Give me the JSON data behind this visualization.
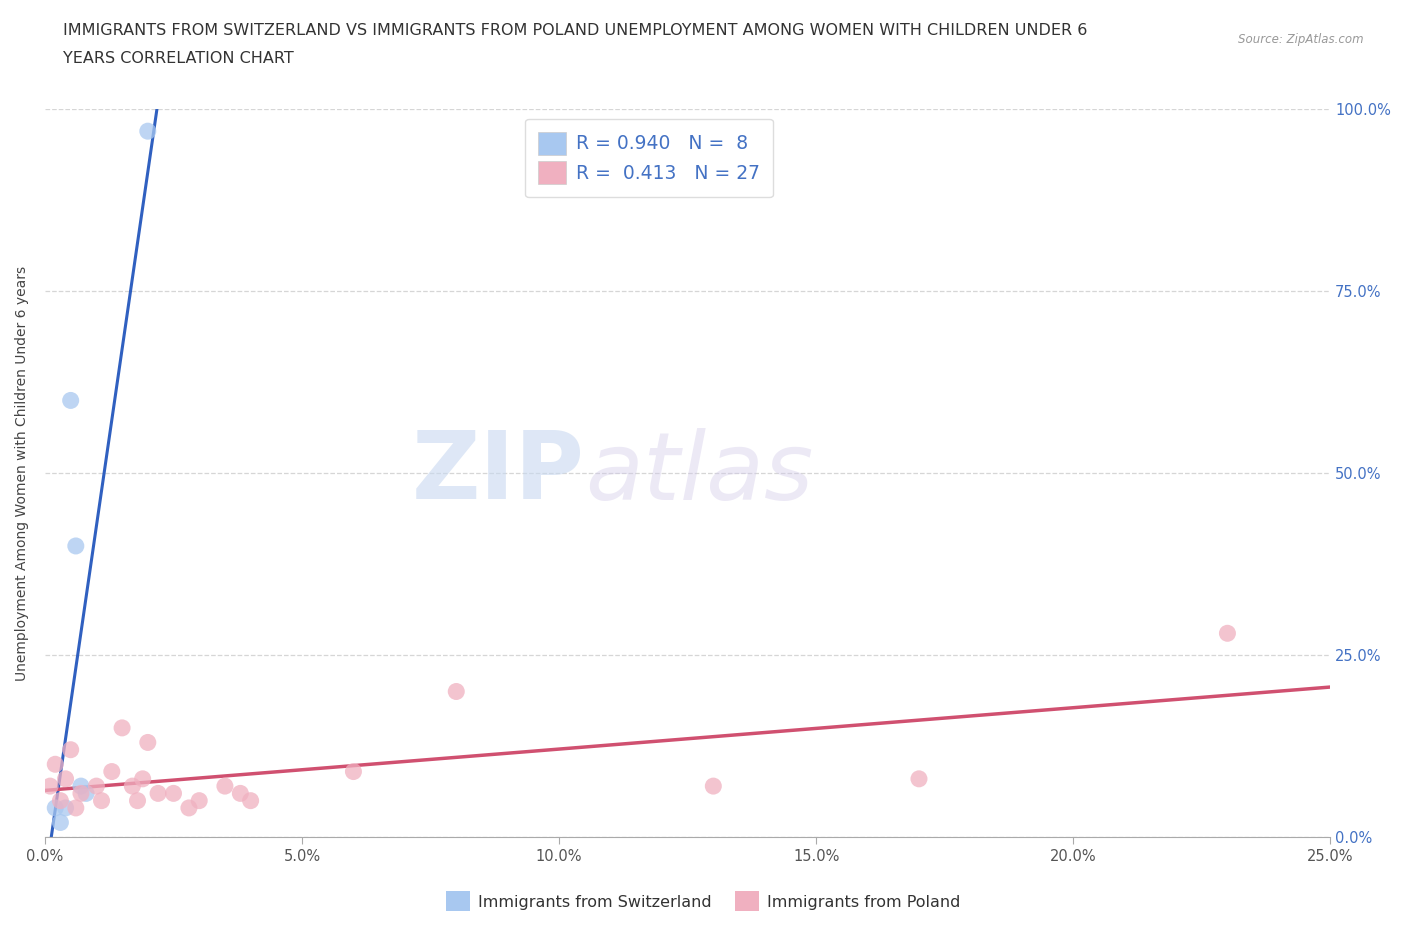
{
  "title_line1": "IMMIGRANTS FROM SWITZERLAND VS IMMIGRANTS FROM POLAND UNEMPLOYMENT AMONG WOMEN WITH CHILDREN UNDER 6",
  "title_line2": "YEARS CORRELATION CHART",
  "source": "Source: ZipAtlas.com",
  "ylabel": "Unemployment Among Women with Children Under 6 years",
  "xlim": [
    0,
    0.25
  ],
  "ylim": [
    0,
    1.0
  ],
  "xticks": [
    0.0,
    0.05,
    0.1,
    0.15,
    0.2,
    0.25
  ],
  "yticks": [
    0.0,
    0.25,
    0.5,
    0.75,
    1.0
  ],
  "xtick_labels": [
    "0.0%",
    "5.0%",
    "10.0%",
    "15.0%",
    "20.0%",
    "25.0%"
  ],
  "ytick_labels_right": [
    "0.0%",
    "25.0%",
    "50.0%",
    "75.0%",
    "100.0%"
  ],
  "switzerland_color": "#a8c8f0",
  "poland_color": "#f0b0c0",
  "switzerland_line_color": "#3060c0",
  "poland_line_color": "#d05070",
  "switzerland_R": 0.94,
  "switzerland_N": 8,
  "poland_R": 0.413,
  "poland_N": 27,
  "legend_label_1": "Immigrants from Switzerland",
  "legend_label_2": "Immigrants from Poland",
  "watermark_zip": "ZIP",
  "watermark_atlas": "atlas",
  "background_color": "#ffffff",
  "switzerland_x": [
    0.002,
    0.003,
    0.004,
    0.005,
    0.006,
    0.007,
    0.008,
    0.02
  ],
  "switzerland_y": [
    0.04,
    0.02,
    0.04,
    0.6,
    0.4,
    0.07,
    0.06,
    0.97
  ],
  "poland_x": [
    0.001,
    0.002,
    0.003,
    0.004,
    0.005,
    0.006,
    0.007,
    0.01,
    0.011,
    0.013,
    0.015,
    0.017,
    0.018,
    0.019,
    0.02,
    0.022,
    0.025,
    0.028,
    0.03,
    0.035,
    0.038,
    0.04,
    0.06,
    0.08,
    0.13,
    0.17,
    0.23
  ],
  "poland_y": [
    0.07,
    0.1,
    0.05,
    0.08,
    0.12,
    0.04,
    0.06,
    0.07,
    0.05,
    0.09,
    0.15,
    0.07,
    0.05,
    0.08,
    0.13,
    0.06,
    0.06,
    0.04,
    0.05,
    0.07,
    0.06,
    0.05,
    0.09,
    0.2,
    0.07,
    0.08,
    0.28
  ],
  "title_fontsize": 11.5,
  "axis_label_fontsize": 10,
  "tick_fontsize": 10.5
}
